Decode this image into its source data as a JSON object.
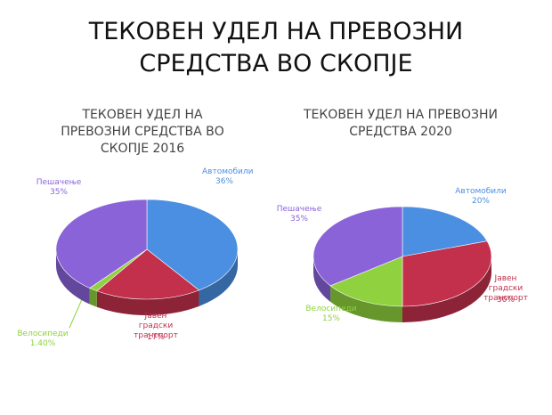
{
  "title": "ТЕКОВЕН УДЕЛ НА ПРЕВОЗНИ СРЕДСТВА ВО СКОПЈЕ",
  "chart_data": [
    {
      "type": "pie",
      "title": "ТЕКОВЕН УДЕЛ НА ПРЕВОЗНИ СРЕДСТВА ВО СКОПЈЕ 2016",
      "categories": [
        "Автомобили",
        "Јавен градски транспорт",
        "Велосипеди",
        "Пешачење"
      ],
      "values": [
        36,
        17,
        1.4,
        35
      ],
      "value_labels": [
        "36%",
        "17%",
        "1.40%",
        "35%"
      ],
      "colors": [
        "#4a8fe2",
        "#c2304c",
        "#8fd13f",
        "#8a63d8"
      ]
    },
    {
      "type": "pie",
      "title": "ТЕКОВЕН УДЕЛ НА ПРЕВОЗНИ СРЕДСТВА 2020",
      "categories": [
        "Автомобили",
        "Јавен градски транспорт",
        "Велосипеди",
        "Пешачење"
      ],
      "values": [
        20,
        30,
        15,
        35
      ],
      "value_labels": [
        "20%",
        "30%",
        "15%",
        "35%"
      ],
      "colors": [
        "#4a8fe2",
        "#c2304c",
        "#8fd13f",
        "#8a63d8"
      ]
    }
  ]
}
